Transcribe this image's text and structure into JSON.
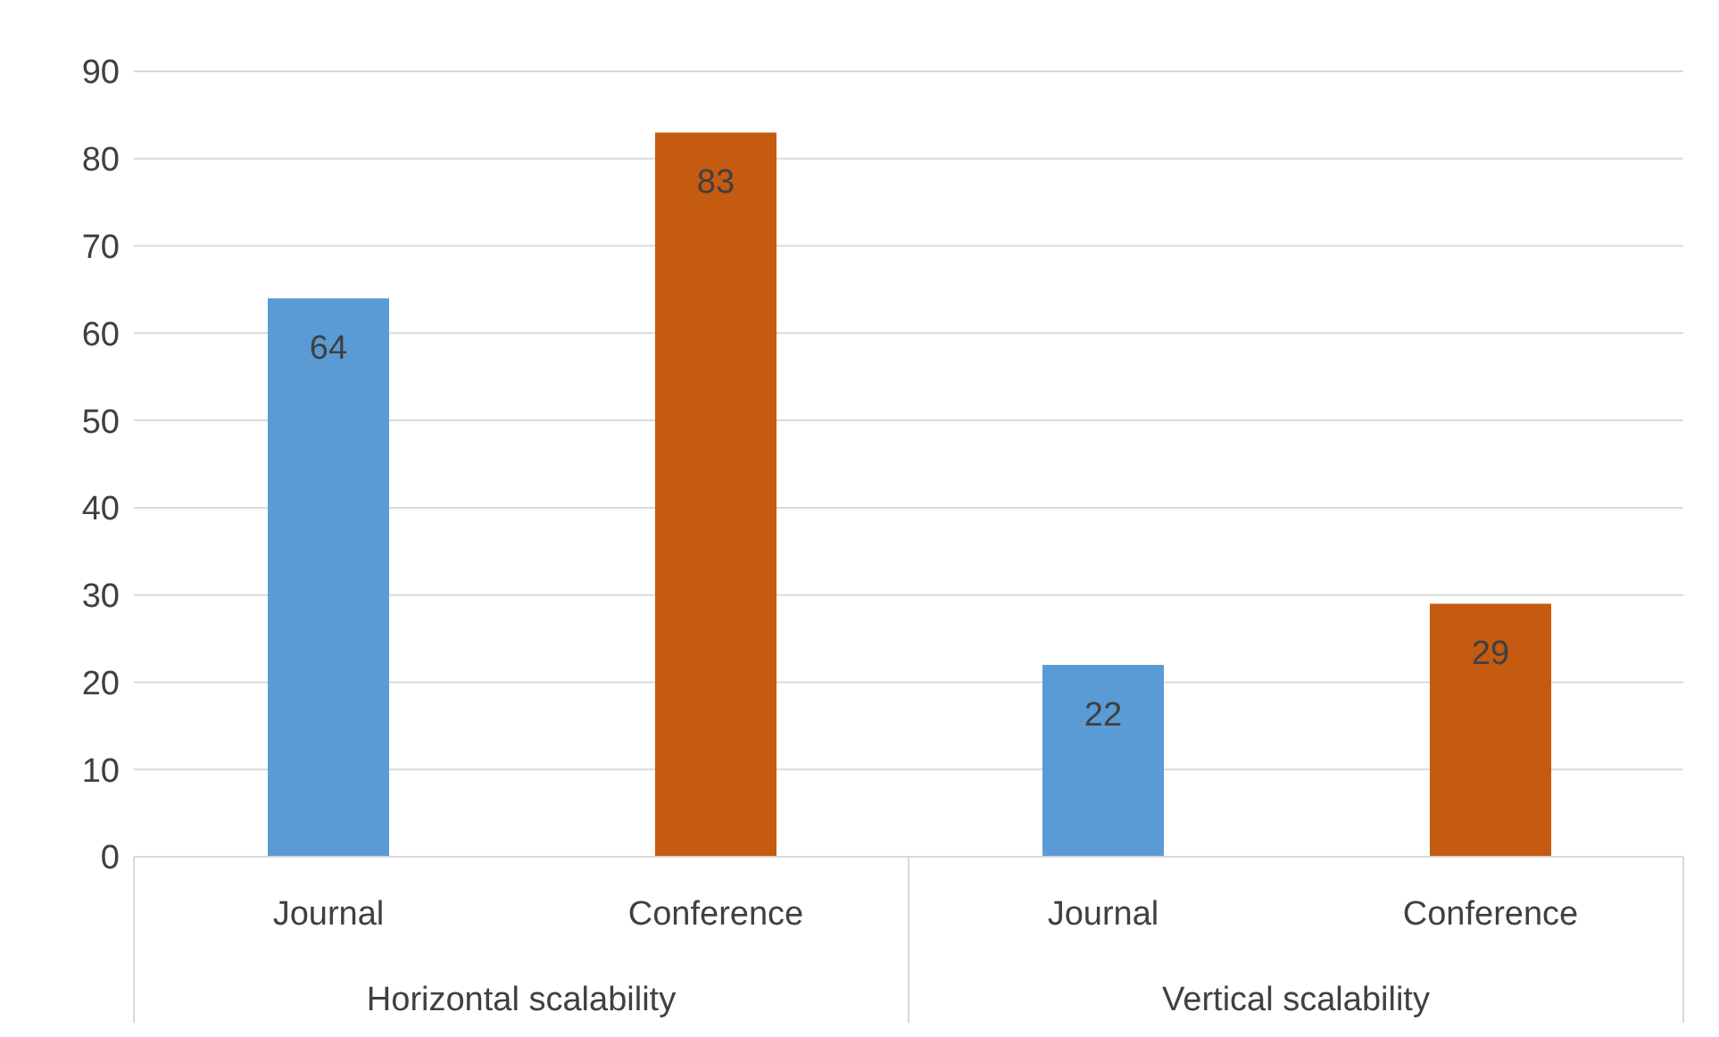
{
  "chart_data": {
    "type": "bar",
    "categories": [
      "Horizontal  scalability",
      "Vertical scalability"
    ],
    "series": [
      {
        "name": "Journal",
        "color": "#5b9bd5",
        "values": [
          64,
          22
        ]
      },
      {
        "name": "Conference",
        "color": "#c55a11",
        "values": [
          83,
          29
        ]
      }
    ],
    "ylim": [
      0,
      90
    ],
    "yticks": [
      0,
      10,
      20,
      30,
      40,
      50,
      60,
      70,
      80,
      90
    ],
    "grid": "y",
    "data_labels": true
  }
}
